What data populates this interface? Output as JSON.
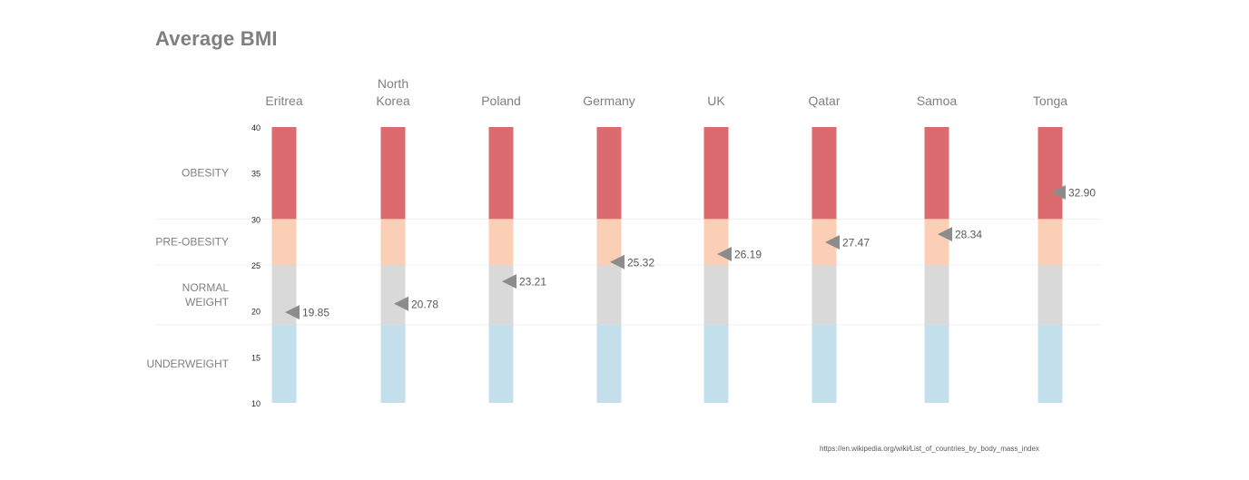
{
  "page": {
    "title": "Average BMI",
    "source": "https://en.wikipedia.org/wiki/List_of_countries_by_body_mass_index"
  },
  "chart_data": {
    "type": "bar",
    "title": "Average BMI",
    "categories": [
      [
        "Eritrea"
      ],
      [
        "North",
        "Korea"
      ],
      [
        "Poland"
      ],
      [
        "Germany"
      ],
      [
        "UK"
      ],
      [
        "Qatar"
      ],
      [
        "Samoa"
      ],
      [
        "Tonga"
      ]
    ],
    "values": [
      19.85,
      20.78,
      23.21,
      25.32,
      26.19,
      27.47,
      28.34,
      32.9
    ],
    "value_labels": [
      "19.85",
      "20.78",
      "23.21",
      "25.32",
      "26.19",
      "27.47",
      "28.34",
      "32.90"
    ],
    "ylim": [
      10,
      40
    ],
    "yticks": [
      10,
      15,
      20,
      25,
      30,
      35,
      40
    ],
    "bands": [
      {
        "name": "UNDERWEIGHT",
        "label_lines": [
          "UNDERWEIGHT"
        ],
        "from": 10,
        "to": 18.5,
        "color": "#c3dfec"
      },
      {
        "name": "NORMAL WEIGHT",
        "label_lines": [
          "NORMAL",
          "WEIGHT"
        ],
        "from": 18.5,
        "to": 25,
        "color": "#d9d9d9"
      },
      {
        "name": "PRE-OBESITY",
        "label_lines": [
          "PRE-OBESITY"
        ],
        "from": 25,
        "to": 30,
        "color": "#fbcfb5"
      },
      {
        "name": "OBESITY",
        "label_lines": [
          "OBESITY"
        ],
        "from": 30,
        "to": 40,
        "color": "#dc6b70"
      }
    ],
    "marker_color": "#8c8c8c",
    "grid": false,
    "legend": "none"
  }
}
